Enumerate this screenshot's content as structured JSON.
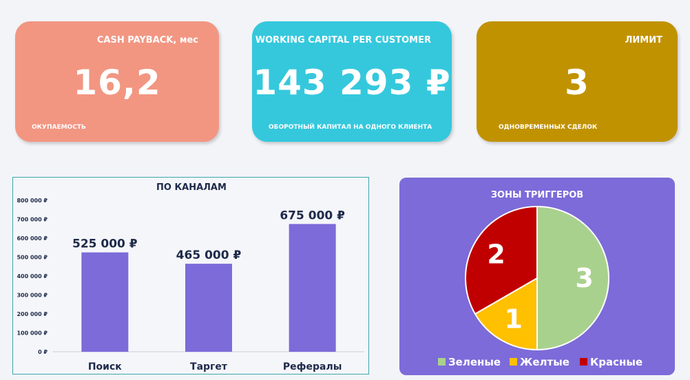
{
  "kpis": {
    "payback": {
      "title": "CASH PAYBACK, мес",
      "value": "16,2",
      "caption": "ОКУПАЕМОСТЬ",
      "color": "#f29682"
    },
    "working_capital": {
      "title": "WORKING CAPITAL PER CUSTOMER",
      "value": "143 293 ₽",
      "caption": "ОБОРОТНЫЙ КАПИТАЛ НА ОДНОГО КЛИЕНТА",
      "color": "#35c8dd"
    },
    "limit": {
      "title": "ЛИМИТ",
      "value": "3",
      "caption": "ОДНОВРЕМЕННЫХ СДЕЛОК",
      "color": "#c19200"
    }
  },
  "chart_data": [
    {
      "type": "bar",
      "title": "ПО КАНАЛАМ",
      "categories": [
        "Поиск",
        "Таргет",
        "Рефералы"
      ],
      "values": [
        525000,
        465000,
        675000
      ],
      "data_labels": [
        "525 000 ₽",
        "465 000 ₽",
        "675 000 ₽"
      ],
      "ylim": [
        0,
        800000
      ],
      "yticks": [
        "0 ₽",
        "100 000 ₽",
        "200 000 ₽",
        "300 000 ₽",
        "400 000 ₽",
        "500 000 ₽",
        "600 000 ₽",
        "700 000 ₽",
        "800 000 ₽"
      ],
      "grid": false,
      "bar_color": "#7c6bd9"
    },
    {
      "type": "pie",
      "title": "ЗОНЫ ТРИГГЕРОВ",
      "slices": [
        {
          "name": "Зеленые",
          "value": 3,
          "color": "#a9d18e"
        },
        {
          "name": "Желтые",
          "value": 1,
          "color": "#ffc000"
        },
        {
          "name": "Красные",
          "value": 2,
          "color": "#c00000"
        }
      ],
      "legend_position": "bottom"
    }
  ]
}
